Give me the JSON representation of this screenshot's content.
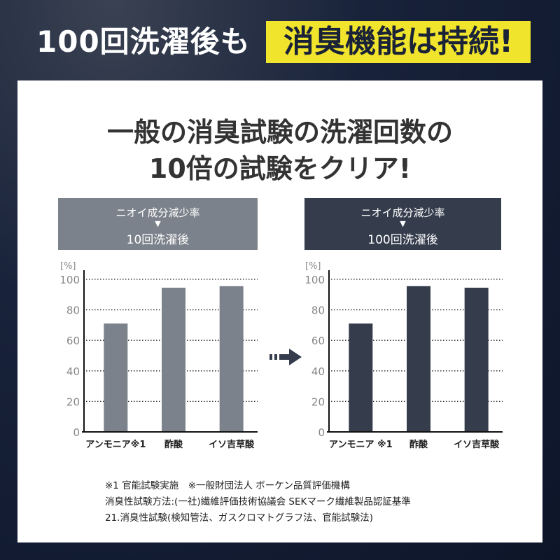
{
  "banner": {
    "lead": "100回洗濯後も",
    "highlight": "消臭機能は持続!",
    "highlight_color": "#f1e42c"
  },
  "heading": {
    "line1": "一般の消臭試験の洗濯回数の",
    "line2": "10倍の試験をクリア!"
  },
  "panels": [
    {
      "metric": "ニオイ成分減少率",
      "pointer": "▼",
      "condition": "10回洗濯後",
      "color": "#7c828b"
    },
    {
      "metric": "ニオイ成分減少率",
      "pointer": "▼",
      "condition": "100回洗濯後",
      "color": "#353d4d"
    }
  ],
  "arrow_icon": "right-arrow-icon",
  "chart_data": [
    {
      "type": "bar",
      "unit_label": "[%]",
      "categories": [
        "アンモニア※1",
        "酢酸",
        "イソ吉草酸"
      ],
      "values": [
        71,
        94.5,
        95.5
      ],
      "ylim": [
        0,
        100
      ],
      "yticks": [
        "0",
        "20",
        "40",
        "60",
        "80",
        "100"
      ],
      "grid": true,
      "bar_color": "#7c828b"
    },
    {
      "type": "bar",
      "unit_label": "[%]",
      "categories": [
        "アンモニア ※1",
        "酢酸",
        "イソ吉草酸"
      ],
      "values": [
        71,
        95.5,
        94.5
      ],
      "ylim": [
        0,
        100
      ],
      "yticks": [
        "0",
        "20",
        "40",
        "60",
        "80",
        "100"
      ],
      "grid": true,
      "bar_color": "#353d4d"
    }
  ],
  "notes": [
    "※1 官能試験実施　※一般財団法人 ボーケン品質評価機構",
    "消臭性試験方法:(一社)繊維評価技術協議会 SEKマーク繊維製品認証基準",
    "21.消臭性試験(検知管法、ガスクロマトグラフ法、官能試験法)"
  ]
}
